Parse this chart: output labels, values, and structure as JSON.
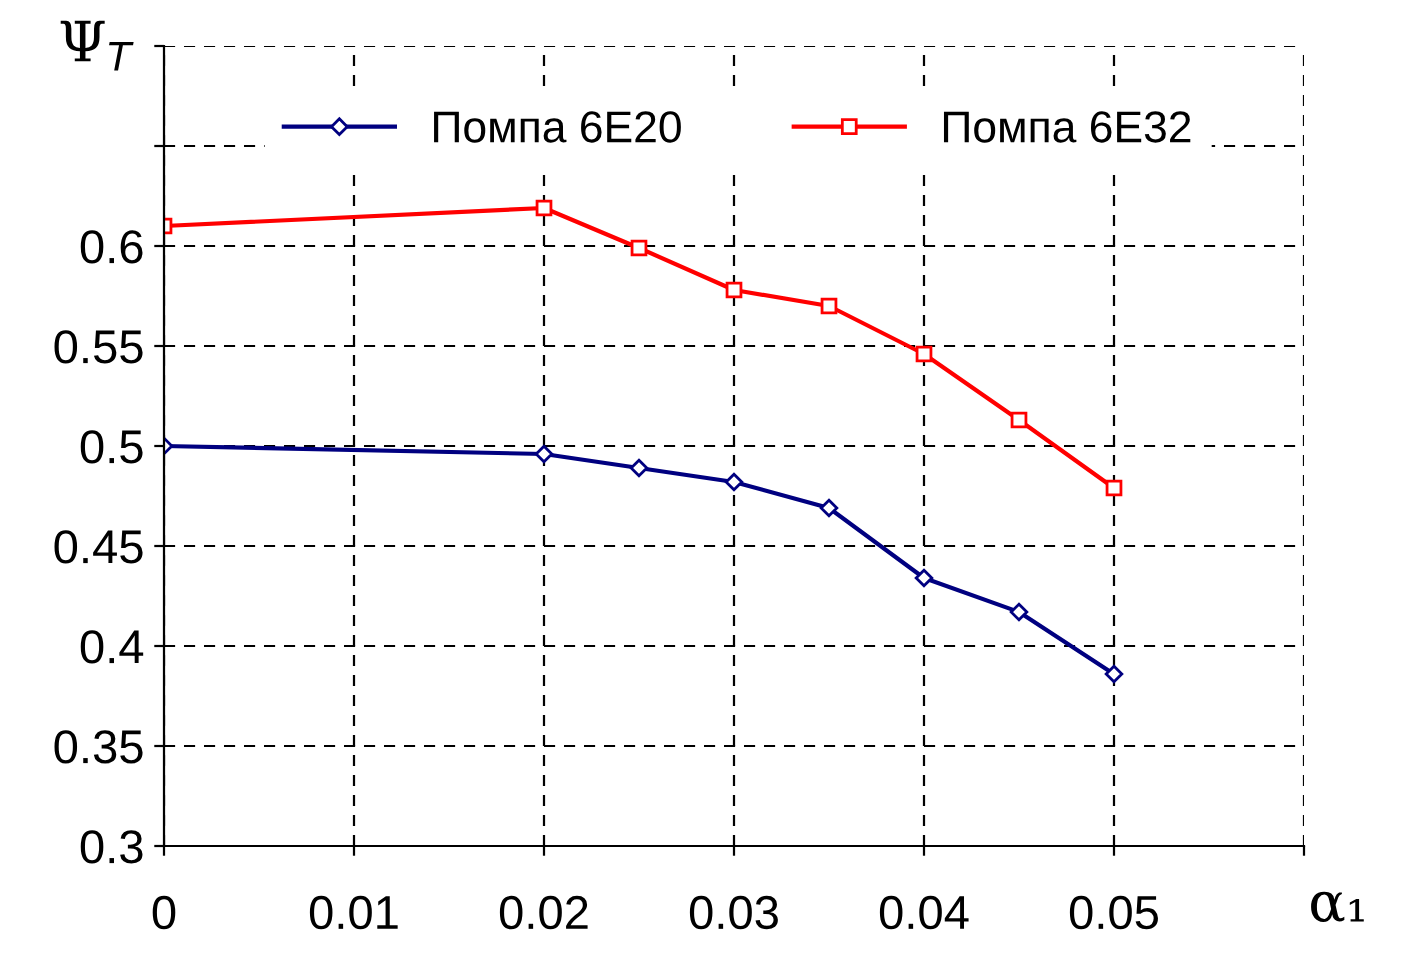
{
  "chart_data": {
    "type": "line",
    "xlabel": "α₁",
    "ylabel": "Ψ$_{T}$",
    "x": [
      0,
      0.02,
      0.025,
      0.03,
      0.035,
      0.04,
      0.045,
      0.05
    ],
    "series": [
      {
        "name": "Помпа 6Е20",
        "color": "#000080",
        "marker": "diamond",
        "values": [
          0.5,
          0.496,
          0.489,
          0.482,
          0.469,
          0.434,
          0.417,
          0.386
        ]
      },
      {
        "name": "Помпа 6Е32",
        "color": "#ff0000",
        "marker": "square",
        "values": [
          0.61,
          0.619,
          0.599,
          0.578,
          0.57,
          0.546,
          0.513,
          0.479
        ]
      }
    ],
    "xlim": [
      0,
      0.06
    ],
    "xticks": [
      0,
      0.01,
      0.02,
      0.03,
      0.04,
      0.05,
      {
        "value": 0.06,
        "label": null
      }
    ],
    "ylim": [
      0.3,
      0.7
    ],
    "yticks": [
      0.3,
      0.35,
      0.4,
      0.45,
      0.5,
      0.55,
      0.6,
      {
        "value": 0.65,
        "label": null
      },
      {
        "value": 0.7,
        "label": null
      }
    ],
    "grid": true,
    "line_style": "solid",
    "legend": "top left"
  }
}
